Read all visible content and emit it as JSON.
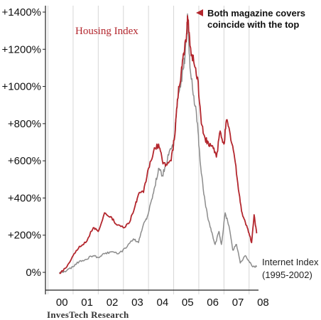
{
  "chart_data": {
    "type": "line",
    "x_tick_labels": [
      "00",
      "01",
      "02",
      "03",
      "04",
      "05",
      "06",
      "07",
      "08"
    ],
    "x_range": [
      -0.6,
      8.1
    ],
    "yticks": [
      0,
      200,
      400,
      600,
      800,
      1000,
      1200,
      1400
    ],
    "y_tick_labels": [
      "0%",
      "+200%",
      "+400%",
      "+600%",
      "+800%",
      "+1000%",
      "+1200%",
      "+1400%"
    ],
    "ylim": [
      -100,
      1420
    ],
    "grid": "vertical gridlines at each year",
    "series": [
      {
        "name": "Housing Index",
        "color": "#b3262d",
        "points": [
          [
            -0.05,
            -5
          ],
          [
            0.25,
            30
          ],
          [
            0.5,
            90
          ],
          [
            0.75,
            140
          ],
          [
            1.0,
            160
          ],
          [
            1.3,
            240
          ],
          [
            1.5,
            220
          ],
          [
            1.75,
            320
          ],
          [
            2.0,
            300
          ],
          [
            2.2,
            260
          ],
          [
            2.5,
            240
          ],
          [
            2.75,
            270
          ],
          [
            2.95,
            350
          ],
          [
            3.1,
            420
          ],
          [
            3.3,
            430
          ],
          [
            3.5,
            560
          ],
          [
            3.7,
            650
          ],
          [
            3.9,
            690
          ],
          [
            4.05,
            600
          ],
          [
            4.2,
            580
          ],
          [
            4.4,
            600
          ],
          [
            4.55,
            740
          ],
          [
            4.65,
            930
          ],
          [
            4.8,
            1080
          ],
          [
            4.9,
            1180
          ],
          [
            5.0,
            1240
          ],
          [
            5.05,
            1380
          ],
          [
            5.15,
            1220
          ],
          [
            5.3,
            1130
          ],
          [
            5.45,
            1050
          ],
          [
            5.6,
            800
          ],
          [
            5.75,
            720
          ],
          [
            5.9,
            680
          ],
          [
            6.05,
            680
          ],
          [
            6.2,
            620
          ],
          [
            6.35,
            760
          ],
          [
            6.5,
            690
          ],
          [
            6.6,
            820
          ],
          [
            6.75,
            740
          ],
          [
            6.9,
            640
          ],
          [
            7.05,
            480
          ],
          [
            7.2,
            330
          ],
          [
            7.35,
            270
          ],
          [
            7.5,
            210
          ],
          [
            7.6,
            160
          ],
          [
            7.7,
            310
          ],
          [
            7.8,
            210
          ]
        ]
      },
      {
        "name": "Internet Index",
        "color": "#8c8c8c",
        "points": [
          [
            -0.05,
            -5
          ],
          [
            0.25,
            10
          ],
          [
            0.5,
            30
          ],
          [
            0.75,
            60
          ],
          [
            1.0,
            70
          ],
          [
            1.3,
            90
          ],
          [
            1.5,
            80
          ],
          [
            1.75,
            100
          ],
          [
            2.0,
            110
          ],
          [
            2.3,
            100
          ],
          [
            2.6,
            130
          ],
          [
            2.9,
            180
          ],
          [
            3.1,
            160
          ],
          [
            3.3,
            260
          ],
          [
            3.45,
            300
          ],
          [
            3.6,
            380
          ],
          [
            3.75,
            460
          ],
          [
            3.9,
            560
          ],
          [
            4.05,
            520
          ],
          [
            4.2,
            580
          ],
          [
            4.35,
            660
          ],
          [
            4.5,
            680
          ],
          [
            4.6,
            850
          ],
          [
            4.75,
            1000
          ],
          [
            4.9,
            1100
          ],
          [
            5.0,
            1250
          ],
          [
            5.05,
            1390
          ],
          [
            5.15,
            1100
          ],
          [
            5.3,
            950
          ],
          [
            5.45,
            800
          ],
          [
            5.55,
            600
          ],
          [
            5.7,
            420
          ],
          [
            5.85,
            300
          ],
          [
            6.0,
            220
          ],
          [
            6.15,
            150
          ],
          [
            6.3,
            220
          ],
          [
            6.4,
            150
          ],
          [
            6.55,
            320
          ],
          [
            6.7,
            250
          ],
          [
            6.85,
            120
          ],
          [
            7.0,
            150
          ],
          [
            7.15,
            50
          ],
          [
            7.35,
            90
          ],
          [
            7.5,
            60
          ],
          [
            7.65,
            30
          ],
          [
            7.8,
            30
          ]
        ]
      }
    ],
    "labels": {
      "housing": "Housing Index",
      "internet_line1": "Internet Index",
      "internet_line2": "(1995-2002)",
      "annotation_line1": "Both magazine covers",
      "annotation_line2": "coincide with the top"
    },
    "credit": "InvesTech Research"
  }
}
